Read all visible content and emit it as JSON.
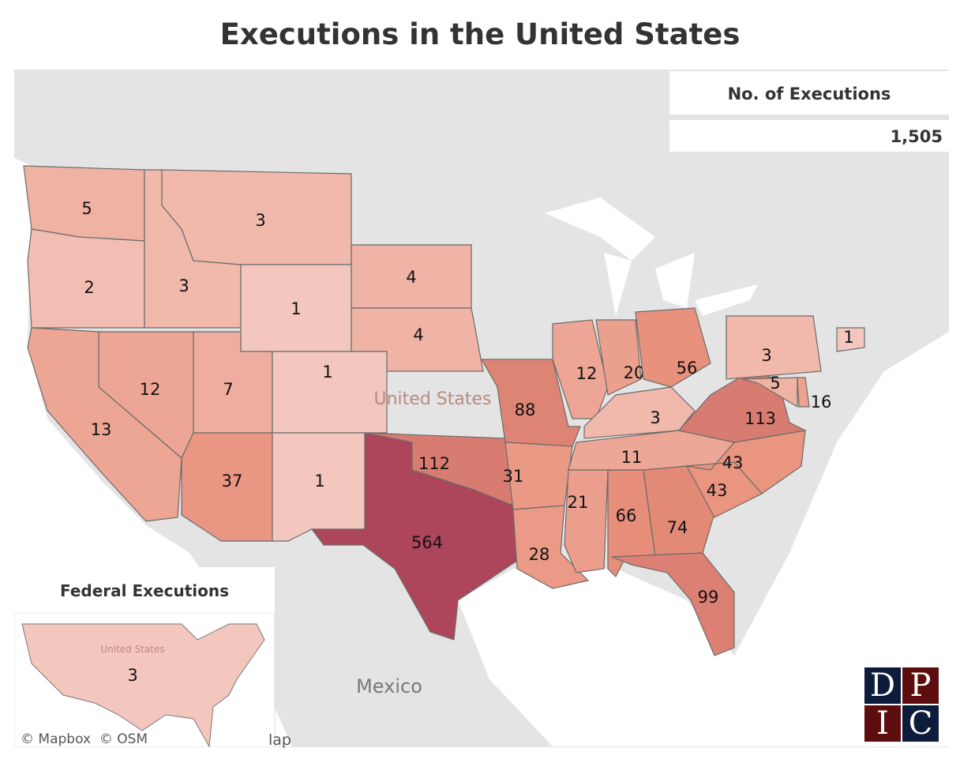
{
  "title": "Executions in the United States",
  "legend": {
    "title": "No. of Executions",
    "total": "1,505"
  },
  "federal": {
    "title": "Federal Executions",
    "value": "3",
    "country_label": "United States"
  },
  "map_labels": {
    "country": "United States",
    "mexico": "Mexico"
  },
  "attribution": {
    "mapbox": "© Mapbox",
    "osm": "© OSM",
    "trailing": "lap"
  },
  "logo": {
    "letters": [
      "D",
      "P",
      "I",
      "C"
    ]
  },
  "colors": {
    "low": "#f4c7be",
    "mid": "#e8907a",
    "high": "#ad465a",
    "land": "#e4e4e4",
    "water": "#ffffff"
  },
  "states": [
    {
      "abbr": "WA",
      "value": 5
    },
    {
      "abbr": "OR",
      "value": 2
    },
    {
      "abbr": "ID",
      "value": 3
    },
    {
      "abbr": "MT",
      "value": 3
    },
    {
      "abbr": "WY",
      "value": 1
    },
    {
      "abbr": "SD",
      "value": 4
    },
    {
      "abbr": "NE",
      "value": 4
    },
    {
      "abbr": "NV",
      "value": 12
    },
    {
      "abbr": "CA",
      "value": 13
    },
    {
      "abbr": "UT",
      "value": 7
    },
    {
      "abbr": "CO",
      "value": 1
    },
    {
      "abbr": "AZ",
      "value": 37
    },
    {
      "abbr": "NM",
      "value": 1
    },
    {
      "abbr": "TX",
      "value": 564
    },
    {
      "abbr": "OK",
      "value": 112
    },
    {
      "abbr": "MO",
      "value": 88
    },
    {
      "abbr": "AR",
      "value": 31
    },
    {
      "abbr": "LA",
      "value": 28
    },
    {
      "abbr": "IL",
      "value": 12
    },
    {
      "abbr": "IN",
      "value": 20
    },
    {
      "abbr": "OH",
      "value": 56
    },
    {
      "abbr": "KY",
      "value": 3
    },
    {
      "abbr": "TN",
      "value": 11
    },
    {
      "abbr": "MS",
      "value": 21
    },
    {
      "abbr": "AL",
      "value": 66
    },
    {
      "abbr": "GA",
      "value": 74
    },
    {
      "abbr": "FL",
      "value": 99
    },
    {
      "abbr": "SC",
      "value": 43
    },
    {
      "abbr": "NC",
      "value": 43
    },
    {
      "abbr": "VA",
      "value": 113
    },
    {
      "abbr": "PA",
      "value": 3
    },
    {
      "abbr": "MD",
      "value": 5
    },
    {
      "abbr": "DE",
      "value": 16
    },
    {
      "abbr": "CT",
      "value": 1
    }
  ]
}
